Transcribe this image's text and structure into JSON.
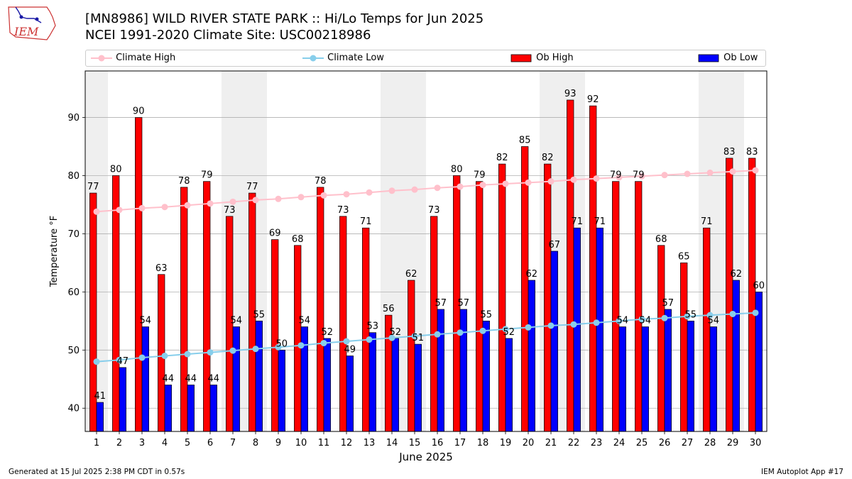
{
  "header": {
    "title_line1": "[MN8986] WILD RIVER STATE PARK :: Hi/Lo Temps for Jun 2025",
    "title_line2": "NCEI 1991-2020 Climate Site: USC00218986",
    "logo_text": "IEM"
  },
  "footer": {
    "generated": "Generated at 15 Jul 2025 2:38 PM CDT in 0.57s",
    "app": "IEM Autoplot App #17"
  },
  "colors": {
    "ob_high": "#ff0000",
    "ob_low": "#0000ff",
    "climate_high": "#ffc0cb",
    "climate_low": "#87ceeb",
    "weekend_shade": "#efefef",
    "grid": "#b0b0b0"
  },
  "chart_data": {
    "type": "bar",
    "xlabel": "June 2025",
    "ylabel": "Temperature °F",
    "ylim": [
      36,
      98
    ],
    "yticks": [
      40,
      50,
      60,
      70,
      80,
      90
    ],
    "grid": "horizontal",
    "legend_placement": "top",
    "categories": [
      "1",
      "2",
      "3",
      "4",
      "5",
      "6",
      "7",
      "8",
      "9",
      "10",
      "11",
      "12",
      "13",
      "14",
      "15",
      "16",
      "17",
      "18",
      "19",
      "20",
      "21",
      "22",
      "23",
      "24",
      "25",
      "26",
      "27",
      "28",
      "29",
      "30"
    ],
    "shaded_days": [
      1,
      7,
      8,
      14,
      15,
      21,
      22,
      28,
      29
    ],
    "series": [
      {
        "name": "Ob High",
        "kind": "bar",
        "values": [
          77,
          80,
          90,
          63,
          78,
          79,
          73,
          77,
          69,
          68,
          78,
          73,
          71,
          56,
          62,
          73,
          80,
          79,
          82,
          85,
          82,
          93,
          92,
          79,
          79,
          68,
          65,
          71,
          83,
          83
        ]
      },
      {
        "name": "Ob Low",
        "kind": "bar",
        "values": [
          41,
          47,
          54,
          44,
          44,
          44,
          54,
          55,
          50,
          54,
          52,
          49,
          53,
          52,
          51,
          57,
          57,
          55,
          52,
          62,
          67,
          71,
          71,
          54,
          54,
          57,
          55,
          54,
          62,
          60
        ]
      },
      {
        "name": "Climate High",
        "kind": "line",
        "values": [
          73.8,
          74.1,
          74.4,
          74.6,
          74.9,
          75.2,
          75.5,
          75.8,
          76.0,
          76.3,
          76.6,
          76.8,
          77.1,
          77.4,
          77.6,
          77.9,
          78.1,
          78.4,
          78.6,
          78.8,
          79.0,
          79.3,
          79.5,
          79.7,
          79.9,
          80.1,
          80.3,
          80.5,
          80.7,
          80.9
        ]
      },
      {
        "name": "Climate Low",
        "kind": "line",
        "values": [
          48.0,
          48.3,
          48.7,
          49.0,
          49.3,
          49.6,
          49.9,
          50.2,
          50.5,
          50.8,
          51.2,
          51.5,
          51.8,
          52.1,
          52.4,
          52.7,
          53.0,
          53.3,
          53.6,
          53.9,
          54.2,
          54.4,
          54.7,
          55.0,
          55.3,
          55.5,
          55.8,
          56.0,
          56.2,
          56.4
        ]
      }
    ]
  }
}
